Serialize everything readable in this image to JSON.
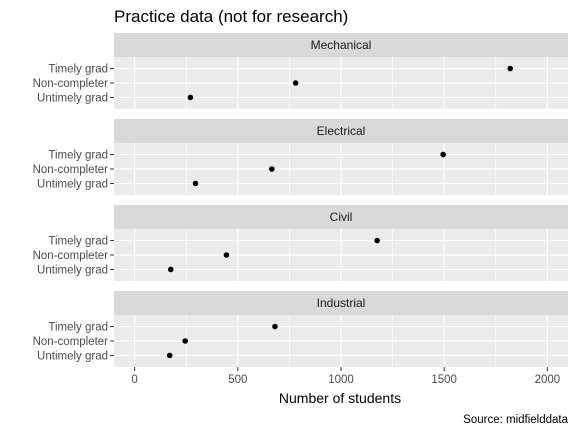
{
  "chart_data": {
    "type": "scatter",
    "title": "Practice data (not for research)",
    "xlabel": "Number of students",
    "ylabel": "",
    "caption": "Source: midfielddata",
    "xlim": [
      -100,
      2100
    ],
    "x_ticks": [
      0,
      500,
      1000,
      1500,
      2000
    ],
    "x_tick_labels": [
      "0",
      "500",
      "1000",
      "1500",
      "2000"
    ],
    "grid": true,
    "facet_rows": [
      "Mechanical",
      "Electrical",
      "Civil",
      "Industrial"
    ],
    "categories": [
      "Timely grad",
      "Non-completer",
      "Untimely grad"
    ],
    "panels": [
      {
        "name": "Mechanical",
        "values": {
          "Timely grad": 1820,
          "Non-completer": 780,
          "Untimely grad": 270
        }
      },
      {
        "name": "Electrical",
        "values": {
          "Timely grad": 1495,
          "Non-completer": 665,
          "Untimely grad": 295
        }
      },
      {
        "name": "Civil",
        "values": {
          "Timely grad": 1175,
          "Non-completer": 445,
          "Untimely grad": 175
        }
      },
      {
        "name": "Industrial",
        "values": {
          "Timely grad": 680,
          "Non-completer": 245,
          "Untimely grad": 170
        }
      }
    ],
    "colors": {
      "panel_background": "#ebebeb",
      "strip_background": "#d9d9d9",
      "grid_major": "#ffffff",
      "point": "#000000"
    }
  }
}
